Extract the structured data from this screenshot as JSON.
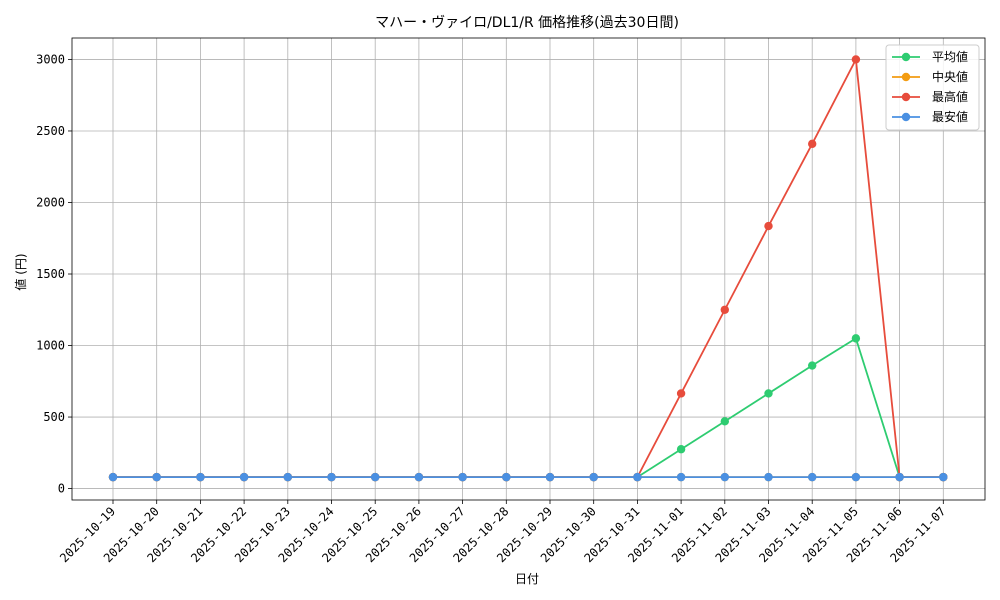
{
  "chart_data": {
    "type": "line",
    "title": "マハー・ヴァイロ/DL1/R 価格推移(過去30日間)",
    "xlabel": "日付",
    "ylabel": "値 (円)",
    "ylim": [
      -80,
      3150
    ],
    "yticks": [
      0,
      500,
      1000,
      1500,
      2000,
      2500,
      3000
    ],
    "grid": true,
    "legend_position": "top-right",
    "categories": [
      "2025-10-19",
      "2025-10-20",
      "2025-10-21",
      "2025-10-22",
      "2025-10-23",
      "2025-10-24",
      "2025-10-25",
      "2025-10-26",
      "2025-10-27",
      "2025-10-28",
      "2025-10-29",
      "2025-10-30",
      "2025-10-31",
      "2025-11-01",
      "2025-11-02",
      "2025-11-03",
      "2025-11-04",
      "2025-11-05",
      "2025-11-06",
      "2025-11-07"
    ],
    "series": [
      {
        "name": "平均値",
        "color": "#2ecc71",
        "values": [
          80,
          80,
          80,
          80,
          80,
          80,
          80,
          80,
          80,
          80,
          80,
          80,
          80,
          275,
          470,
          665,
          860,
          1050,
          80,
          80
        ]
      },
      {
        "name": "中央値",
        "color": "#f39c12",
        "values": [
          80,
          80,
          80,
          80,
          80,
          80,
          80,
          80,
          80,
          80,
          80,
          80,
          80,
          80,
          80,
          80,
          80,
          80,
          80,
          80
        ]
      },
      {
        "name": "最高値",
        "color": "#e74c3c",
        "values": [
          80,
          80,
          80,
          80,
          80,
          80,
          80,
          80,
          80,
          80,
          80,
          80,
          80,
          665,
          1250,
          1835,
          2410,
          3000,
          80,
          80
        ]
      },
      {
        "name": "最安値",
        "color": "#4a90e2",
        "values": [
          80,
          80,
          80,
          80,
          80,
          80,
          80,
          80,
          80,
          80,
          80,
          80,
          80,
          80,
          80,
          80,
          80,
          80,
          80,
          80
        ]
      }
    ]
  }
}
